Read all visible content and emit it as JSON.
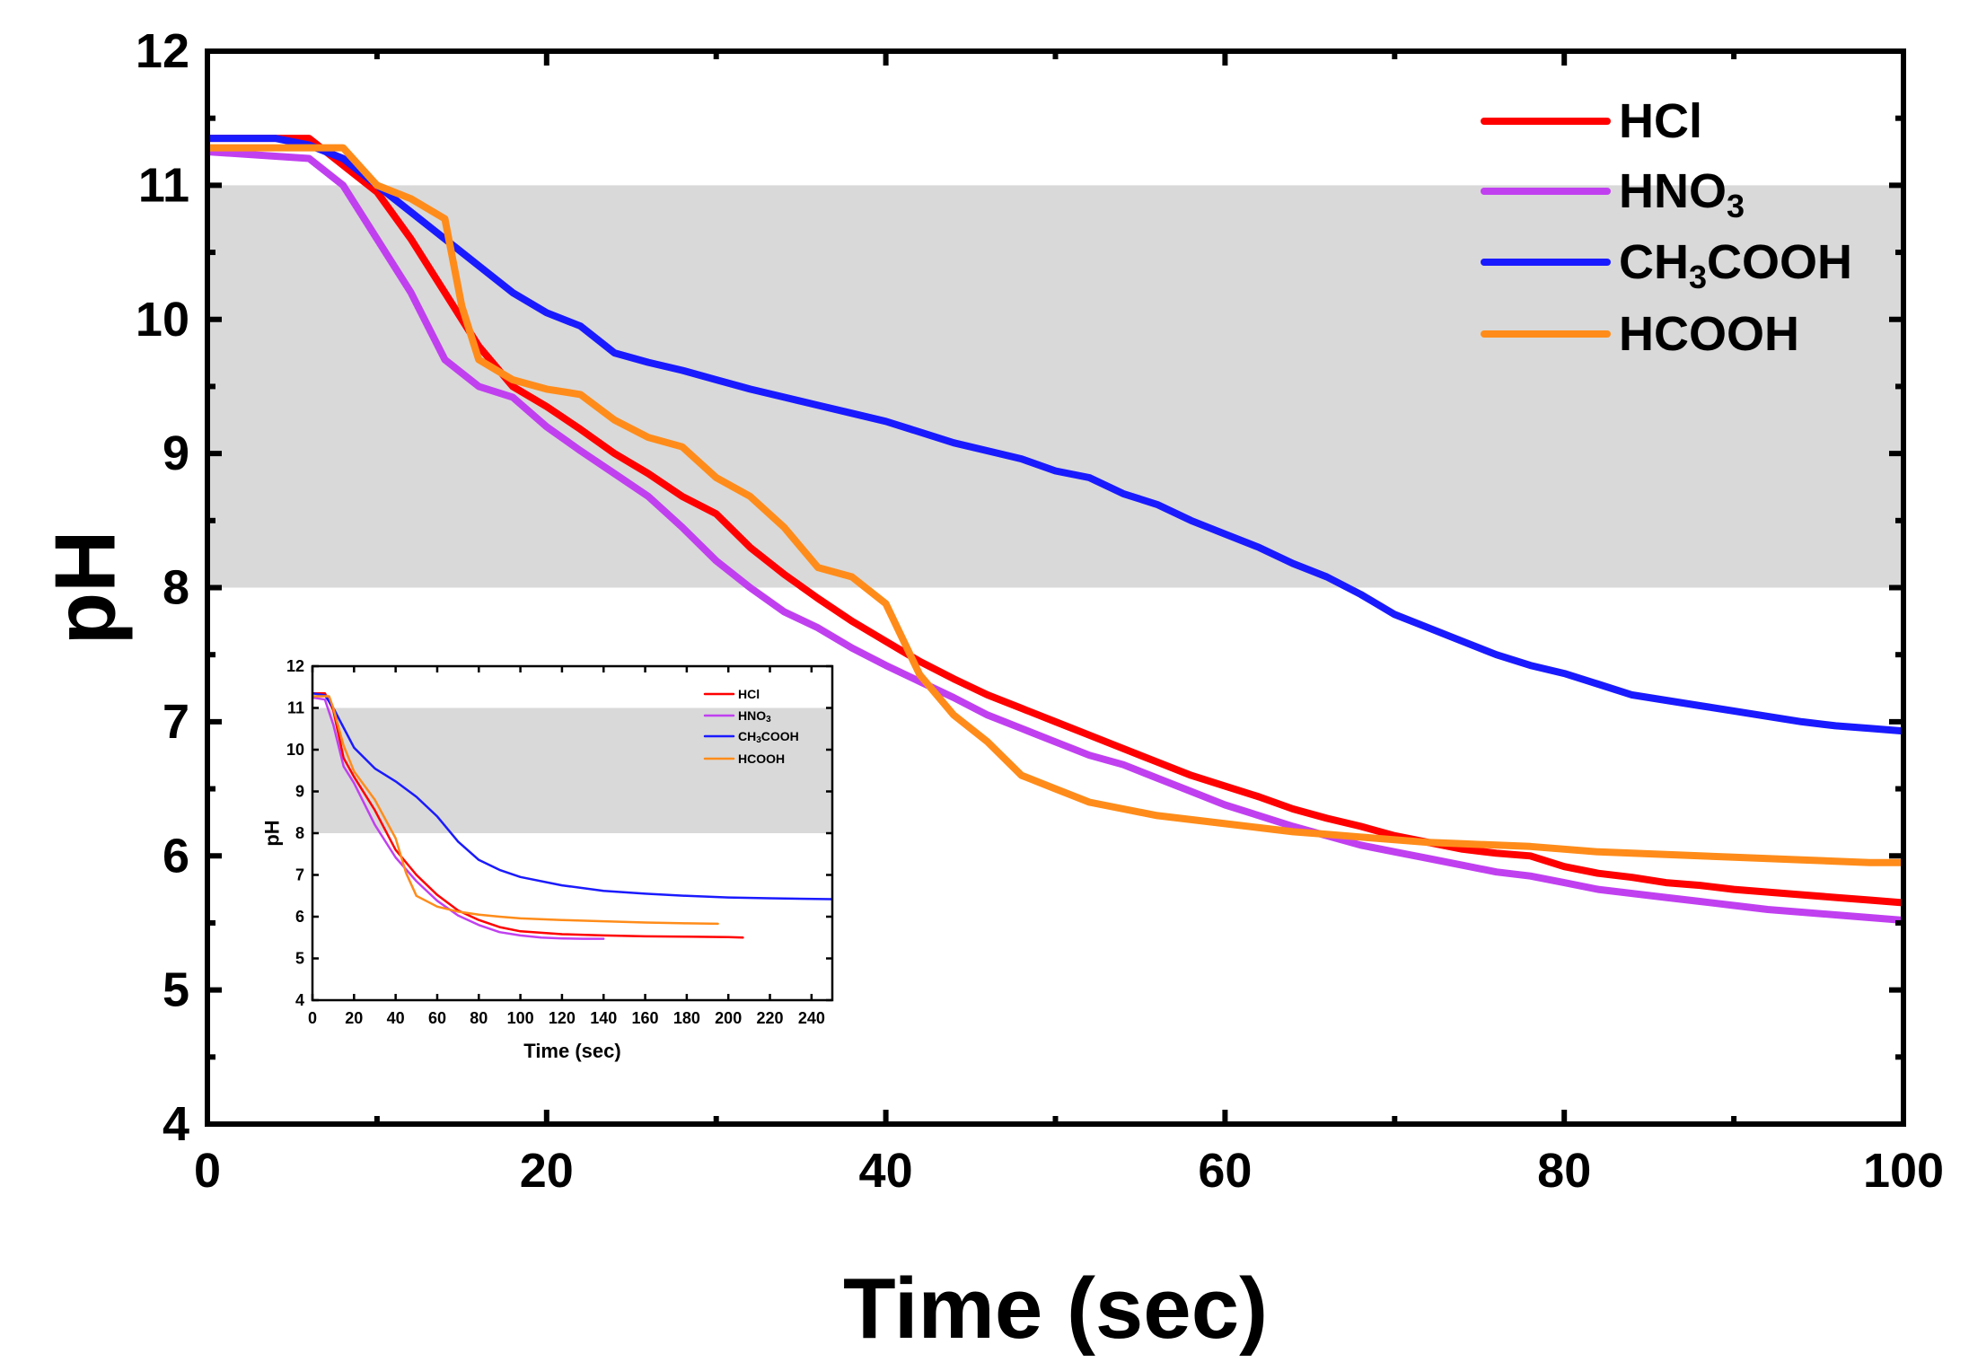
{
  "chart_data": [
    {
      "id": "main",
      "type": "line",
      "title": "",
      "xlabel": "Time (sec)",
      "ylabel": "pH",
      "xlim": [
        0,
        100
      ],
      "ylim": [
        4,
        12
      ],
      "xticks": [
        0,
        20,
        40,
        60,
        80,
        100
      ],
      "yticks": [
        4,
        5,
        6,
        7,
        8,
        9,
        10,
        11,
        12
      ],
      "shaded_band": {
        "y_from": 8,
        "y_to": 11,
        "color": "#d9d9d9"
      },
      "legend_position": "top-right",
      "series": [
        {
          "name": "HCl",
          "label_main": "HCl",
          "label_sub": "",
          "label_tail": "",
          "color": "#ff0000",
          "x": [
            0,
            6,
            8,
            10,
            12,
            14,
            16,
            18,
            20,
            22,
            24,
            26,
            28,
            30,
            32,
            34,
            36,
            38,
            40,
            42,
            44,
            46,
            48,
            50,
            52,
            54,
            56,
            58,
            60,
            62,
            64,
            66,
            68,
            70,
            72,
            74,
            76,
            78,
            80,
            82,
            84,
            86,
            88,
            90,
            92,
            94,
            96,
            98,
            100
          ],
          "y": [
            11.35,
            11.35,
            11.15,
            10.95,
            10.6,
            10.2,
            9.8,
            9.5,
            9.35,
            9.18,
            9.0,
            8.85,
            8.68,
            8.55,
            8.3,
            8.1,
            7.92,
            7.75,
            7.6,
            7.45,
            7.32,
            7.2,
            7.1,
            7.0,
            6.9,
            6.8,
            6.7,
            6.6,
            6.52,
            6.44,
            6.35,
            6.28,
            6.22,
            6.15,
            6.1,
            6.05,
            6.02,
            6.0,
            5.92,
            5.87,
            5.84,
            5.8,
            5.78,
            5.75,
            5.73,
            5.71,
            5.69,
            5.67,
            5.65
          ]
        },
        {
          "name": "HNO3",
          "label_main": "HNO",
          "label_sub": "3",
          "label_tail": "",
          "color": "#c040f0",
          "x": [
            0,
            6,
            8,
            10,
            12,
            14,
            16,
            18,
            20,
            22,
            24,
            26,
            28,
            30,
            32,
            34,
            36,
            38,
            40,
            42,
            44,
            46,
            48,
            50,
            52,
            54,
            56,
            58,
            60,
            62,
            64,
            66,
            68,
            70,
            72,
            74,
            76,
            78,
            80,
            82,
            84,
            86,
            88,
            90,
            92,
            94,
            96,
            98,
            100
          ],
          "y": [
            11.25,
            11.2,
            11.0,
            10.6,
            10.2,
            9.7,
            9.5,
            9.42,
            9.2,
            9.02,
            8.85,
            8.68,
            8.45,
            8.2,
            8.0,
            7.82,
            7.7,
            7.55,
            7.42,
            7.3,
            7.18,
            7.05,
            6.95,
            6.85,
            6.75,
            6.68,
            6.58,
            6.48,
            6.38,
            6.3,
            6.22,
            6.15,
            6.08,
            6.03,
            5.98,
            5.93,
            5.88,
            5.85,
            5.8,
            5.75,
            5.72,
            5.69,
            5.66,
            5.63,
            5.6,
            5.58,
            5.56,
            5.54,
            5.52
          ]
        },
        {
          "name": "CH3COOH",
          "label_main": "CH",
          "label_sub": "3",
          "label_tail": "COOH",
          "color": "#1a1aff",
          "x": [
            0,
            4,
            6,
            8,
            10,
            12,
            14,
            16,
            18,
            20,
            22,
            24,
            26,
            28,
            30,
            32,
            34,
            36,
            38,
            40,
            42,
            44,
            46,
            48,
            50,
            52,
            54,
            56,
            58,
            60,
            62,
            64,
            66,
            68,
            70,
            72,
            74,
            76,
            78,
            80,
            82,
            84,
            86,
            88,
            90,
            92,
            94,
            96,
            98,
            100
          ],
          "y": [
            11.35,
            11.35,
            11.3,
            11.2,
            11.0,
            10.8,
            10.6,
            10.4,
            10.2,
            10.05,
            9.95,
            9.75,
            9.68,
            9.62,
            9.55,
            9.48,
            9.42,
            9.36,
            9.3,
            9.24,
            9.16,
            9.08,
            9.02,
            8.96,
            8.87,
            8.82,
            8.7,
            8.62,
            8.5,
            8.4,
            8.3,
            8.18,
            8.08,
            7.95,
            7.8,
            7.7,
            7.6,
            7.5,
            7.42,
            7.36,
            7.28,
            7.2,
            7.16,
            7.12,
            7.08,
            7.04,
            7.0,
            6.97,
            6.95,
            6.93
          ]
        },
        {
          "name": "HCOOH",
          "label_main": "HCOOH",
          "label_sub": "",
          "label_tail": "",
          "color": "#ff8c1a",
          "x": [
            0,
            6,
            8,
            10,
            12,
            14,
            15,
            16,
            18,
            20,
            22,
            24,
            26,
            28,
            30,
            32,
            34,
            36,
            38,
            40,
            42,
            44,
            46,
            48,
            50,
            52,
            54,
            56,
            58,
            60,
            62,
            64,
            66,
            68,
            70,
            72,
            74,
            76,
            78,
            80,
            82,
            84,
            86,
            88,
            90,
            92,
            94,
            96,
            98,
            100
          ],
          "y": [
            11.28,
            11.28,
            11.28,
            11.0,
            10.9,
            10.75,
            10.1,
            9.7,
            9.55,
            9.48,
            9.44,
            9.25,
            9.12,
            9.05,
            8.82,
            8.68,
            8.45,
            8.15,
            8.08,
            7.88,
            7.35,
            7.05,
            6.85,
            6.6,
            6.5,
            6.4,
            6.35,
            6.3,
            6.27,
            6.24,
            6.21,
            6.18,
            6.16,
            6.14,
            6.12,
            6.1,
            6.09,
            6.08,
            6.07,
            6.05,
            6.03,
            6.02,
            6.01,
            6.0,
            5.99,
            5.98,
            5.97,
            5.96,
            5.95,
            5.95
          ]
        }
      ]
    },
    {
      "id": "inset",
      "type": "line",
      "title": "",
      "xlabel": "Time (sec)",
      "ylabel": "pH",
      "xlim": [
        0,
        250
      ],
      "ylim": [
        4,
        12
      ],
      "xticks": [
        0,
        20,
        40,
        60,
        80,
        100,
        120,
        140,
        160,
        180,
        200,
        220,
        240
      ],
      "yticks": [
        4,
        5,
        6,
        7,
        8,
        9,
        10,
        11,
        12
      ],
      "shaded_band": {
        "y_from": 8,
        "y_to": 11,
        "color": "#d9d9d9"
      },
      "legend_position": "top-right",
      "series": [
        {
          "name": "HCl",
          "label_main": "HCl",
          "label_sub": "",
          "label_tail": "",
          "color": "#ff0000",
          "x": [
            0,
            6,
            10,
            15,
            20,
            30,
            40,
            50,
            60,
            70,
            80,
            90,
            100,
            120,
            140,
            160,
            180,
            200,
            207
          ],
          "y": [
            11.35,
            11.35,
            10.95,
            9.8,
            9.35,
            8.55,
            7.6,
            7.0,
            6.52,
            6.15,
            5.92,
            5.75,
            5.65,
            5.58,
            5.55,
            5.53,
            5.52,
            5.51,
            5.5
          ]
        },
        {
          "name": "HNO3",
          "label_main": "HNO",
          "label_sub": "3",
          "label_tail": "",
          "color": "#c040f0",
          "x": [
            0,
            6,
            10,
            15,
            20,
            30,
            40,
            50,
            60,
            70,
            80,
            90,
            100,
            110,
            120,
            130,
            140
          ],
          "y": [
            11.25,
            11.2,
            10.6,
            9.6,
            9.2,
            8.2,
            7.42,
            6.85,
            6.38,
            6.03,
            5.8,
            5.63,
            5.55,
            5.5,
            5.48,
            5.47,
            5.47
          ]
        },
        {
          "name": "CH3COOH",
          "label_main": "CH",
          "label_sub": "3",
          "label_tail": "COOH",
          "color": "#1a1aff",
          "x": [
            0,
            6,
            10,
            20,
            30,
            40,
            50,
            60,
            70,
            80,
            90,
            100,
            120,
            140,
            160,
            180,
            200,
            220,
            250
          ],
          "y": [
            11.35,
            11.3,
            11.0,
            10.05,
            9.55,
            9.24,
            8.87,
            8.4,
            7.8,
            7.36,
            7.12,
            6.95,
            6.75,
            6.62,
            6.55,
            6.5,
            6.46,
            6.44,
            6.42
          ]
        },
        {
          "name": "HCOOH",
          "label_main": "HCOOH",
          "label_sub": "",
          "label_tail": "",
          "color": "#ff8c1a",
          "x": [
            0,
            8,
            10,
            15,
            20,
            30,
            40,
            45,
            50,
            60,
            70,
            80,
            90,
            100,
            120,
            140,
            160,
            180,
            195
          ],
          "y": [
            11.28,
            11.28,
            11.0,
            10.1,
            9.48,
            8.8,
            7.88,
            7.05,
            6.5,
            6.24,
            6.12,
            6.05,
            6.0,
            5.96,
            5.92,
            5.89,
            5.86,
            5.84,
            5.83
          ]
        }
      ]
    }
  ]
}
